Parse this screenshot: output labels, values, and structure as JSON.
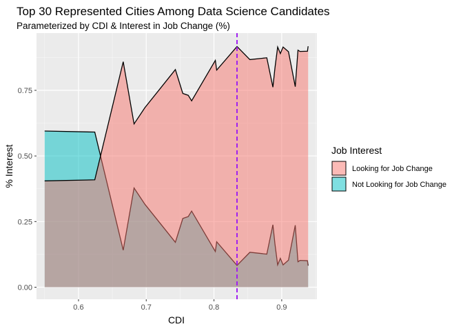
{
  "chart_data": {
    "type": "area",
    "title": "Top 30 Represented Cities Among Data Science Candidates",
    "subtitle": "Parameterized by CDI & Interest in Job Change (%)",
    "xlabel": "CDI",
    "ylabel": "% Interest",
    "xlim": [
      0.538,
      0.952
    ],
    "ylim": [
      -0.046,
      0.968
    ],
    "xticks": [
      0.6,
      0.7,
      0.8,
      0.9
    ],
    "xtick_labels": [
      "0.6",
      "0.7",
      "0.8",
      "0.9"
    ],
    "yticks": [
      0.0,
      0.25,
      0.5,
      0.75
    ],
    "ytick_labels": [
      "0.00",
      "0.25",
      "0.50",
      "0.75"
    ],
    "grid": true,
    "legend_placement": "right",
    "legend_title": "Job Interest",
    "x": [
      0.55,
      0.624,
      0.666,
      0.682,
      0.698,
      0.743,
      0.754,
      0.762,
      0.767,
      0.802,
      0.804,
      0.834,
      0.853,
      0.878,
      0.887,
      0.89,
      0.894,
      0.898,
      0.902,
      0.91,
      0.92,
      0.924,
      0.927,
      0.938,
      0.939
    ],
    "series": [
      {
        "name": "Not Looking for Job Change",
        "color": "#00BFC4",
        "values": [
          0.595,
          0.591,
          0.141,
          0.378,
          0.316,
          0.171,
          0.262,
          0.269,
          0.29,
          0.136,
          0.173,
          0.083,
          0.133,
          0.126,
          0.238,
          0.165,
          0.085,
          0.11,
          0.085,
          0.103,
          0.236,
          0.097,
          0.102,
          0.101,
          0.082
        ]
      },
      {
        "name": "Looking for Job Change",
        "color": "#F8766D",
        "values": [
          0.405,
          0.409,
          0.859,
          0.622,
          0.684,
          0.829,
          0.738,
          0.731,
          0.71,
          0.864,
          0.827,
          0.917,
          0.867,
          0.874,
          0.762,
          0.835,
          0.915,
          0.89,
          0.915,
          0.897,
          0.764,
          0.903,
          0.898,
          0.899,
          0.918
        ]
      }
    ],
    "vline": {
      "x": 0.834,
      "color": "#A020F0",
      "style": "dashed"
    }
  }
}
